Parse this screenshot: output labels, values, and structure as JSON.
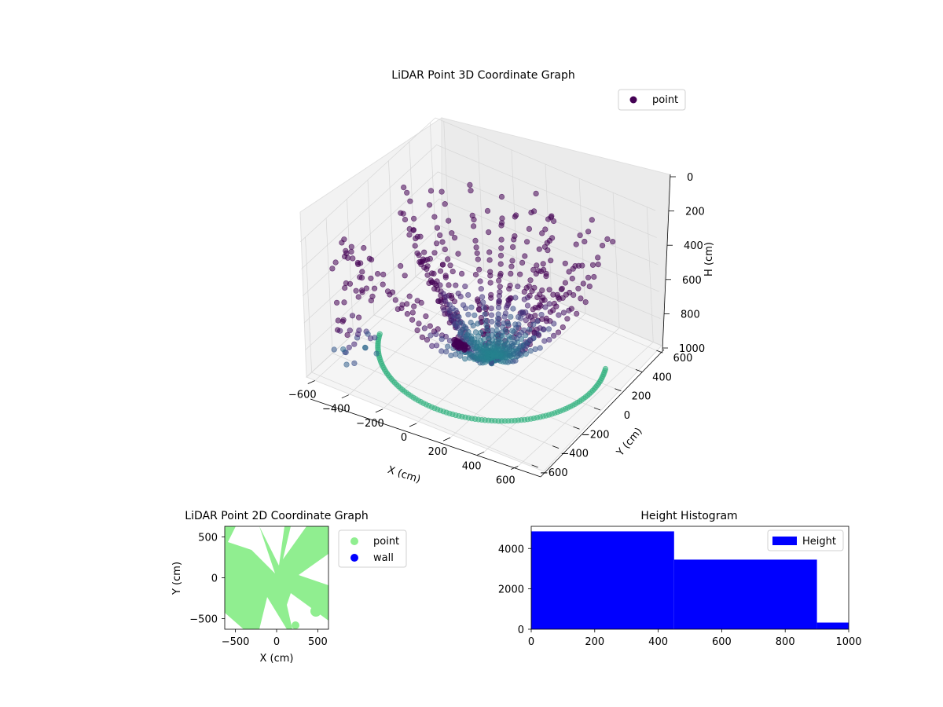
{
  "chart_data": [
    {
      "type": "scatter",
      "title": "LiDAR Point 3D Coordinate Graph",
      "xlabel": "X (cm)",
      "ylabel": "Y (cm)",
      "zlabel": "H (cm)",
      "x_ticks": [
        "−600",
        "−400",
        "−200",
        "0",
        "200",
        "400",
        "600"
      ],
      "y_ticks": [
        "−600",
        "−400",
        "−200",
        "0",
        "200",
        "400",
        "600"
      ],
      "z_ticks": [
        "0",
        "200",
        "400",
        "600",
        "800",
        "1000"
      ],
      "xlim": [
        -650,
        650
      ],
      "ylim": [
        -650,
        650
      ],
      "zlim": [
        1000,
        0
      ],
      "z_axis_inverted": true,
      "grid": true,
      "legend": {
        "position": "top-right",
        "entries": [
          {
            "label": "point",
            "color": "#440154"
          }
        ]
      },
      "colormap": "viridis",
      "series": [
        {
          "name": "point"
        }
      ]
    },
    {
      "type": "scatter",
      "title": "LiDAR Point 2D Coordinate Graph",
      "xlabel": "X (cm)",
      "ylabel": "Y (cm)",
      "x_ticks": [
        "−500",
        "0",
        "500"
      ],
      "y_ticks": [
        "−500",
        "0",
        "500"
      ],
      "xlim": [
        -630,
        630
      ],
      "ylim": [
        -630,
        630
      ],
      "legend": {
        "position": "outside-right",
        "entries": [
          {
            "label": "point",
            "color": "#90ee90"
          },
          {
            "label": "wall",
            "color": "#0000ff"
          }
        ]
      },
      "series": [
        {
          "name": "point",
          "color": "#90ee90"
        },
        {
          "name": "wall",
          "color": "#0000ff"
        }
      ]
    },
    {
      "type": "bar",
      "title": "Height Histogram",
      "x_ticks": [
        "0",
        "200",
        "400",
        "600",
        "800",
        "1000"
      ],
      "y_ticks": [
        "0",
        "2000",
        "4000"
      ],
      "xlim": [
        0,
        1000
      ],
      "ylim": [
        0,
        5100
      ],
      "bins": [
        {
          "from": 0,
          "to": 450,
          "count": 4850
        },
        {
          "from": 450,
          "to": 900,
          "count": 3450
        },
        {
          "from": 900,
          "to": 1000,
          "count": 330
        }
      ],
      "legend": {
        "position": "top-right",
        "entries": [
          {
            "label": "Height",
            "color": "#0000ff"
          }
        ]
      },
      "series": [
        {
          "name": "Height",
          "color": "#0000ff"
        }
      ]
    }
  ]
}
